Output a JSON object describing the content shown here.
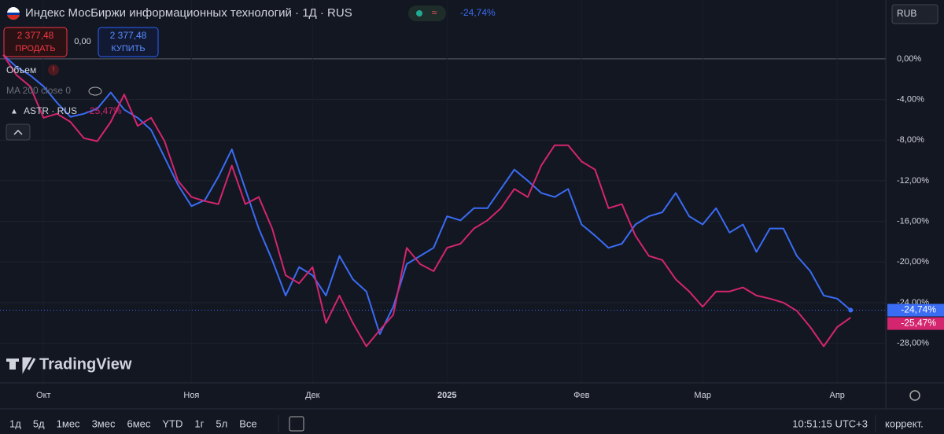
{
  "header": {
    "title": "Индекс МосБиржи информационных технологий · 1Д · RUS",
    "change": "-24,74%",
    "currency": "RUB"
  },
  "trade": {
    "sell_price": "2 377,48",
    "sell": "ПРОДАТЬ",
    "spread": "0,00",
    "buy_price": "2 377,48",
    "buy": "КУПИТЬ"
  },
  "indicators": {
    "volume": "Объем",
    "ma": "MA 200 close 0"
  },
  "logo": "TradingView",
  "toolbar": {
    "ranges": [
      "1д",
      "5д",
      "1мес",
      "3мес",
      "6мес",
      "YTD",
      "1г",
      "5л",
      "Все"
    ],
    "time": "10:51:15 UTC+3",
    "adjust": "коррект."
  },
  "chart_data": {
    "type": "line",
    "categories": [
      null,
      null,
      null,
      "Окт",
      null,
      null,
      null,
      null,
      null,
      null,
      null,
      null,
      null,
      null,
      "Ноя",
      null,
      null,
      null,
      null,
      null,
      null,
      null,
      null,
      "Дек",
      null,
      null,
      null,
      null,
      null,
      null,
      null,
      null,
      null,
      "2025",
      null,
      null,
      null,
      null,
      null,
      null,
      null,
      null,
      null,
      "Фев",
      null,
      null,
      null,
      null,
      null,
      null,
      null,
      null,
      "Мар",
      null,
      null,
      null,
      null,
      null,
      null,
      null,
      null,
      null,
      "Апр",
      null
    ],
    "series": [
      {
        "color": "#3a6cf4",
        "values": [
          0.4,
          -0.8,
          -1.6,
          -2.7,
          -4.3,
          -5.7,
          -5.4,
          -4.9,
          -3.3,
          -5.0,
          -5.8,
          -7.0,
          -9.7,
          -12.4,
          -14.5,
          -13.9,
          -11.6,
          -8.9,
          -12.8,
          -16.7,
          -19.8,
          -23.3,
          -20.5,
          -21.3,
          -23.3,
          -19.4,
          -21.7,
          -22.9,
          -27.1,
          -24.4,
          -20.2,
          -19.4,
          -18.6,
          -15.5,
          -15.9,
          -14.7,
          -14.7,
          -12.8,
          -10.9,
          -12.0,
          -13.2,
          -13.6,
          -12.8,
          -16.3,
          -17.4,
          -18.6,
          -18.2,
          -16.3,
          -15.5,
          -15.1,
          -13.2,
          -15.5,
          -16.3,
          -14.7,
          -17.1,
          -16.3,
          -19.0,
          -16.7,
          -16.7,
          -19.4,
          -20.9,
          -23.3,
          -23.6,
          -24.74
        ],
        "value_labels": [
          null,
          null,
          null,
          null,
          null,
          null,
          null,
          null,
          null,
          null,
          null,
          null,
          null,
          null,
          null,
          null,
          null,
          null,
          null,
          null,
          null,
          null,
          null,
          null,
          null,
          null,
          null,
          null,
          null,
          null,
          null,
          null,
          null,
          null,
          null,
          null,
          null,
          null,
          null,
          null,
          null,
          null,
          null,
          null,
          null,
          null,
          null,
          null,
          null,
          null,
          null,
          null,
          null,
          null,
          null,
          null,
          null,
          null,
          null,
          null,
          null,
          null,
          null,
          "-24,74%"
        ]
      },
      {
        "name": "ASTR · RUS",
        "color": "#d4256f",
        "values": [
          0.4,
          -1.6,
          -2.7,
          -5.8,
          -5.4,
          -6.2,
          -7.8,
          -8.1,
          -6.2,
          -3.5,
          -6.6,
          -5.8,
          -8.1,
          -12.0,
          -13.6,
          -14.0,
          -14.3,
          -10.5,
          -14.3,
          -13.6,
          -16.7,
          -21.3,
          -22.1,
          -20.5,
          -26.0,
          -23.3,
          -26.0,
          -28.3,
          -26.7,
          -25.2,
          -18.6,
          -20.2,
          -20.9,
          -18.6,
          -18.2,
          -16.7,
          -15.9,
          -14.7,
          -12.8,
          -13.6,
          -10.5,
          -8.5,
          -8.5,
          -10.1,
          -10.9,
          -14.7,
          -14.3,
          -17.4,
          -19.4,
          -19.8,
          -21.7,
          -22.9,
          -24.4,
          -22.9,
          -22.9,
          -22.5,
          -23.3,
          -23.6,
          -24.0,
          -24.8,
          -26.4,
          -28.3,
          -26.4,
          -25.47
        ],
        "value_labels": [
          null,
          null,
          null,
          null,
          null,
          null,
          null,
          null,
          null,
          null,
          null,
          null,
          null,
          null,
          null,
          null,
          null,
          null,
          null,
          null,
          null,
          null,
          null,
          null,
          null,
          null,
          null,
          null,
          null,
          null,
          null,
          null,
          null,
          null,
          null,
          null,
          null,
          null,
          null,
          null,
          null,
          null,
          null,
          null,
          null,
          null,
          null,
          null,
          null,
          null,
          null,
          null,
          null,
          null,
          null,
          null,
          null,
          null,
          null,
          null,
          null,
          null,
          null,
          "-25,47%"
        ],
        "legend_label": "-25,47%"
      }
    ],
    "ylim": [
      -31.9,
      5.8
    ],
    "yticks": [
      {
        "value": 0,
        "label": "0,00%"
      },
      {
        "value": -4,
        "label": "-4,00%"
      },
      {
        "value": -8,
        "label": "-8,00%"
      },
      {
        "value": -12,
        "label": "-12,00%"
      },
      {
        "value": -16,
        "label": "-16,00%"
      },
      {
        "value": -20,
        "label": "-20,00%"
      },
      {
        "value": -24,
        "label": "-24,00%"
      },
      {
        "value": -28,
        "label": "-28,00%"
      }
    ],
    "grid": true
  }
}
